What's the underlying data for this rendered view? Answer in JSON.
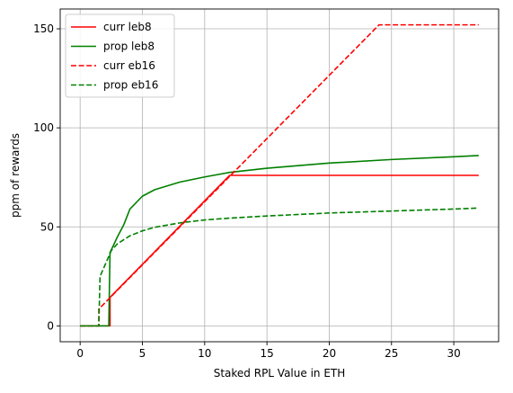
{
  "chart_data": {
    "type": "line",
    "title": "",
    "xlabel": "Staked RPL Value in ETH",
    "ylabel": "ppm of rewards",
    "xlim": [
      -1.6,
      33.6
    ],
    "ylim": [
      -8,
      160
    ],
    "xticks": [
      0,
      5,
      10,
      15,
      20,
      25,
      30
    ],
    "yticks": [
      0,
      50,
      100,
      150
    ],
    "grid": true,
    "legend_position": "top-left",
    "series": [
      {
        "name": "curr leb8",
        "color": "#ff0000",
        "style": "solid",
        "x": [
          0,
          2.4,
          2.4,
          12,
          32
        ],
        "y": [
          0,
          0,
          14.4,
          76,
          76
        ]
      },
      {
        "name": "prop leb8",
        "color": "#008000",
        "style": "solid",
        "x": [
          0,
          2.3,
          2.4,
          3,
          3.5,
          4,
          5,
          6,
          8,
          10,
          12,
          15,
          20,
          25,
          30,
          32
        ],
        "y": [
          0,
          0,
          37,
          45,
          51,
          59,
          65.5,
          68.8,
          72.6,
          75.2,
          77.5,
          79.6,
          82.2,
          84,
          85.4,
          86
        ]
      },
      {
        "name": "curr eb16",
        "color": "#ff0000",
        "style": "dashed",
        "x": [
          0,
          1.5,
          1.5,
          24,
          32
        ],
        "y": [
          0,
          0,
          8.5,
          152,
          152
        ]
      },
      {
        "name": "prop eb16",
        "color": "#008000",
        "style": "dashed",
        "x": [
          0,
          1.5,
          1.6,
          2.5,
          3,
          4,
          5,
          6,
          8,
          10,
          12,
          15,
          20,
          25,
          30,
          32
        ],
        "y": [
          0,
          0,
          25,
          38,
          41.5,
          45.5,
          48,
          49.8,
          52,
          53.5,
          54.4,
          55.5,
          57,
          58,
          59,
          59.5
        ]
      }
    ]
  }
}
